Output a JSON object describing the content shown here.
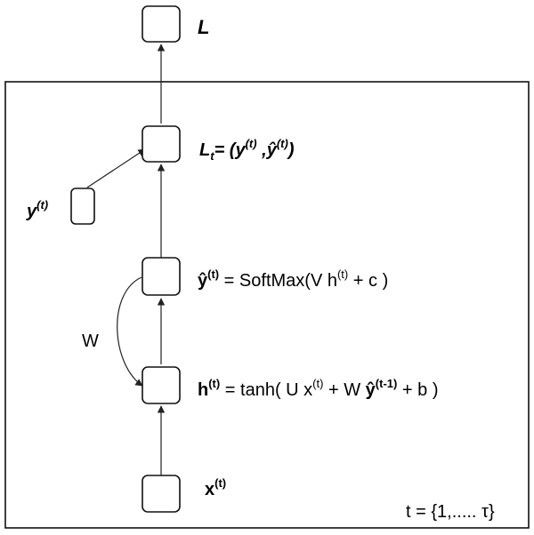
{
  "top_node": {
    "label": "L"
  },
  "loss_node": {
    "label_main": "L",
    "label_sub": "t",
    "label_eq": "= (y",
    "label_sup1": "(t)",
    "label_sep": " ,",
    "label_yhat": "ŷ",
    "label_sup2": "(t)",
    "label_close": ")"
  },
  "target_node": {
    "label_main": "y",
    "label_sup": "(t)"
  },
  "output_node": {
    "label_main": "ŷ",
    "label_sup": "(t)",
    "label_eq": " = SoftMax(V h",
    "label_sup2": "(t)",
    "label_rest": " + c )"
  },
  "hidden_node": {
    "label_main": "h",
    "label_sup": "(t)",
    "label_eq": " = tanh( U x",
    "label_sup2": "(t)",
    "label_mid": " + W ",
    "label_yhat": "ŷ",
    "label_sup3": "(t-1)",
    "label_rest": " + b )"
  },
  "input_node": {
    "label_main": "x",
    "label_sup": "(t)"
  },
  "recurrent_edge": {
    "label": "W"
  },
  "time_range": {
    "label": "t = {1,..... τ}"
  }
}
